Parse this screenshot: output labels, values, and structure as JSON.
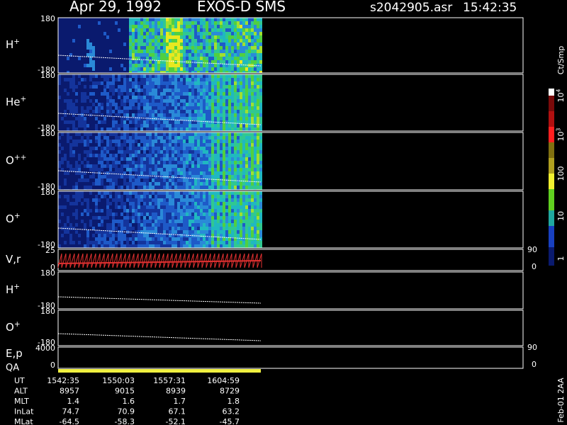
{
  "header": {
    "date": "Apr 29, 1992",
    "instrument": "EXOS-D SMS",
    "file": "s2042905.asr",
    "time": "15:42:35"
  },
  "panels": [
    {
      "label": "H",
      "sup": "+",
      "top": "180",
      "bottom": "-180"
    },
    {
      "label": "He",
      "sup": "+",
      "top": "180",
      "bottom": "-180"
    },
    {
      "label": "O",
      "sup": "++",
      "top": "180",
      "bottom": "-180"
    },
    {
      "label": "O",
      "sup": "+",
      "top": "180",
      "bottom": "-180"
    },
    {
      "label": "V,r",
      "top": "25",
      "bottom": "0",
      "right_top": "90",
      "right_bottom": "0"
    },
    {
      "label": "H",
      "sup": "+",
      "top": "180",
      "bottom": "-180"
    },
    {
      "label": "O",
      "sup": "+",
      "top": "180",
      "bottom": "-180"
    },
    {
      "label": "E,p",
      "top": "4000",
      "bottom": "0",
      "right_top": "90",
      "right_bottom": "0"
    }
  ],
  "qa": "QA",
  "colorbar": {
    "unit": "Ct/Smp",
    "labels": [
      {
        "base": "10",
        "sup": "4"
      },
      {
        "base": "10",
        "sup": "3"
      },
      {
        "base": "100"
      },
      {
        "base": "10"
      },
      {
        "base": "1"
      }
    ]
  },
  "footer": {
    "rows": [
      {
        "label": "UT",
        "values": [
          "1542:35",
          "1550:03",
          "1557:31",
          "1604:59"
        ]
      },
      {
        "label": "ALT",
        "values": [
          "8957",
          "9015",
          "8939",
          "8729"
        ]
      },
      {
        "label": "MLT",
        "values": [
          "1.4",
          "1.6",
          "1.7",
          "1.8"
        ]
      },
      {
        "label": "InLat",
        "values": [
          "74.7",
          "70.9",
          "67.1",
          "63.2"
        ]
      },
      {
        "label": "MLat",
        "values": [
          "-64.5",
          "-58.3",
          "-52.1",
          "-45.7"
        ]
      }
    ]
  },
  "stamp": "Feb-01 2AA"
}
